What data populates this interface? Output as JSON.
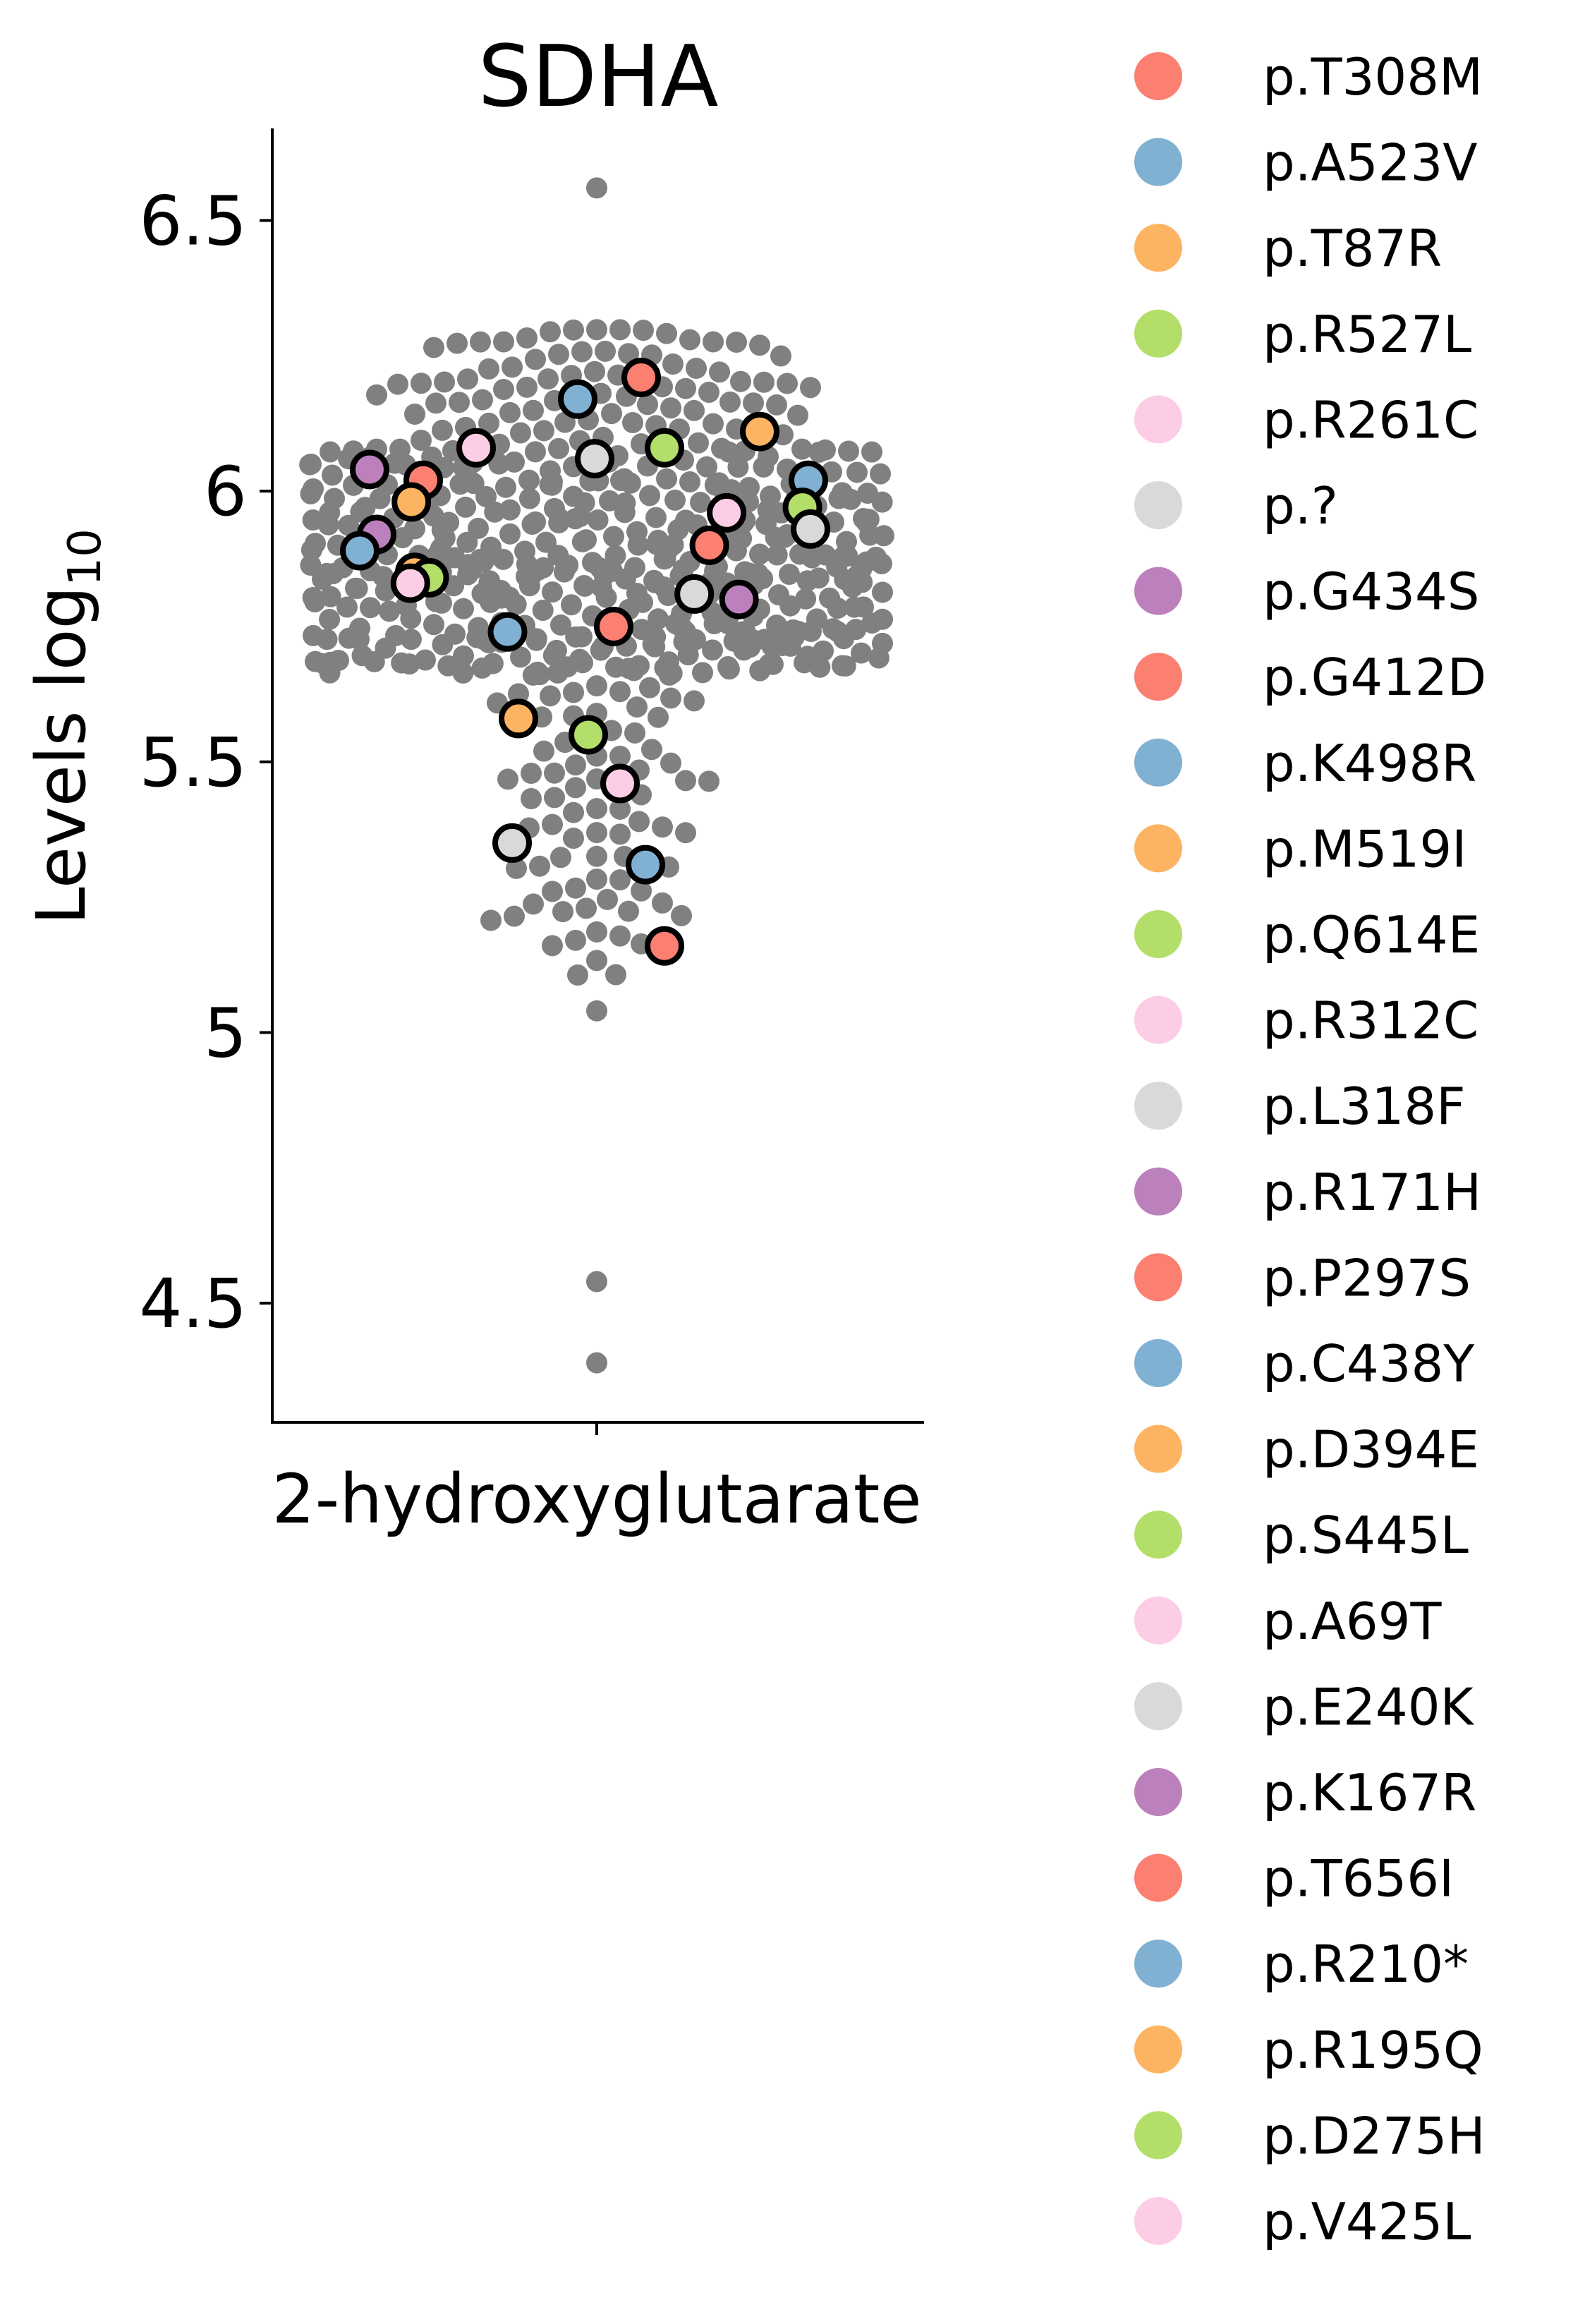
{
  "chart_data": {
    "type": "scatter",
    "subtype": "swarm",
    "title": "SDHA",
    "ylabel": "Levels log",
    "ylabel_subscript": "10",
    "categories": [
      "2-hydroxyglutarate"
    ],
    "ylim": [
      4.28,
      6.67
    ],
    "yticks": [
      {
        "value": 4.5,
        "label": "4.5"
      },
      {
        "value": 5,
        "label": "5"
      },
      {
        "value": 5.5,
        "label": "5.5"
      },
      {
        "value": 6,
        "label": "6"
      },
      {
        "value": 6.5,
        "label": "6.5"
      }
    ],
    "grid": false,
    "legend_position": "outside-right",
    "background_color": "#808080",
    "background_n": 560,
    "background_outliers": [
      4.39,
      4.54,
      5.04,
      6.56
    ],
    "variants": [
      {
        "name": "p.T308M",
        "color": "#fb8072",
        "value": 6.21
      },
      {
        "name": "p.A523V",
        "color": "#80b1d3",
        "value": 6.17
      },
      {
        "name": "p.T87R",
        "color": "#fdb462",
        "value": 6.11
      },
      {
        "name": "p.R527L",
        "color": "#b3de69",
        "value": 6.08
      },
      {
        "name": "p.R261C",
        "color": "#fccde5",
        "value": 6.08
      },
      {
        "name": "p.?",
        "color": "#d9d9d9",
        "value": 6.06
      },
      {
        "name": "p.G434S",
        "color": "#bc80bd",
        "value": 6.04
      },
      {
        "name": "p.G412D",
        "color": "#fb8072",
        "value": 6.02
      },
      {
        "name": "p.K498R",
        "color": "#80b1d3",
        "value": 6.02
      },
      {
        "name": "p.M519I",
        "color": "#fdb462",
        "value": 5.98
      },
      {
        "name": "p.Q614E",
        "color": "#b3de69",
        "value": 5.97
      },
      {
        "name": "p.R312C",
        "color": "#fccde5",
        "value": 5.96
      },
      {
        "name": "p.L318F",
        "color": "#d9d9d9",
        "value": 5.93
      },
      {
        "name": "p.R171H",
        "color": "#bc80bd",
        "value": 5.92
      },
      {
        "name": "p.P297S",
        "color": "#fb8072",
        "value": 5.9
      },
      {
        "name": "p.C438Y",
        "color": "#80b1d3",
        "value": 5.89
      },
      {
        "name": "p.D394E",
        "color": "#fdb462",
        "value": 5.85
      },
      {
        "name": "p.S445L",
        "color": "#b3de69",
        "value": 5.84
      },
      {
        "name": "p.A69T",
        "color": "#fccde5",
        "value": 5.83
      },
      {
        "name": "p.E240K",
        "color": "#d9d9d9",
        "value": 5.81
      },
      {
        "name": "p.K167R",
        "color": "#bc80bd",
        "value": 5.8
      },
      {
        "name": "p.T656I",
        "color": "#fb8072",
        "value": 5.75
      },
      {
        "name": "p.R210*",
        "color": "#80b1d3",
        "value": 5.74
      },
      {
        "name": "p.R195Q",
        "color": "#fdb462",
        "value": 5.58
      },
      {
        "name": "p.D275H",
        "color": "#b3de69",
        "value": 5.55
      },
      {
        "name": "p.V425L",
        "color": "#fccde5",
        "value": 5.46
      }
    ],
    "highlight_extra": [
      {
        "color": "#d9d9d9",
        "value": 5.35
      },
      {
        "color": "#80b1d3",
        "value": 5.31
      },
      {
        "color": "#fb8072",
        "value": 5.16
      }
    ]
  }
}
